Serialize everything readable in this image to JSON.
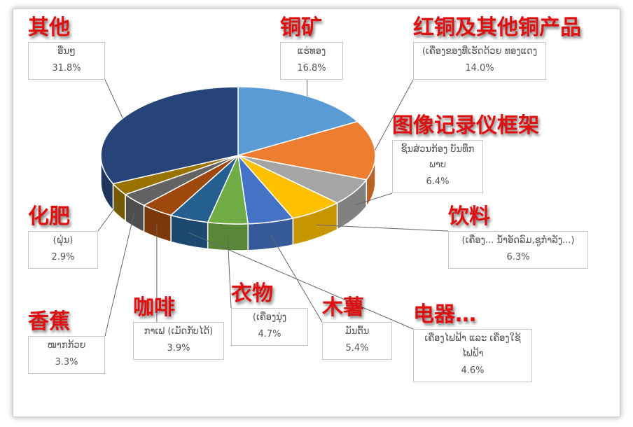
{
  "chart_data": {
    "type": "pie",
    "style": "3d",
    "start": "top, clockwise",
    "slices": [
      {
        "label_lao": "ແຮ່ທອງ",
        "label_zh": "铜矿",
        "value": 16.8,
        "pct": "16.8%",
        "color": "#5b9bd5"
      },
      {
        "label_lao": "(ເຄື່ອງຂອງທີ່ເຮັດດ້ວຍ ທອງແດງ",
        "label_zh": "红铜及其他铜产品",
        "value": 14.0,
        "pct": "14.0%",
        "color": "#ed7d31"
      },
      {
        "label_lao": "ຊິ້ນສ່ວນກ້ອງ ບັນທຶກພາບ",
        "label_zh": "图像记录仪框架",
        "value": 6.4,
        "pct": "6.4%",
        "color": "#a5a5a5"
      },
      {
        "label_lao": "(ເຄື່ອງ... ນ້ຳອັດລົມ,ຊູກຳລັງ...)",
        "label_zh": "饮料",
        "value": 6.3,
        "pct": "6.3%",
        "color": "#ffc000"
      },
      {
        "label_lao": "ມັນຕົ້ນ",
        "label_zh": "木薯",
        "value": 5.4,
        "pct": "5.4%",
        "color": "#4472c4"
      },
      {
        "label_lao": "(ເຄື່ອງນຸ່ງ",
        "label_zh": "衣物",
        "value": 4.7,
        "pct": "4.7%",
        "color": "#70ad47"
      },
      {
        "label_lao": "ເຄື່ອງໄຟຟ້າ ແລະ ເຄື່ອງໃຊ້ໄຟຟ້າ",
        "label_zh": "电器…",
        "value": 4.6,
        "pct": "4.6%",
        "color": "#255e91"
      },
      {
        "label_lao": "ກາເຟ (ເມັດກັບໄດ້)",
        "label_zh": "咖啡",
        "value": 3.9,
        "pct": "3.9%",
        "color": "#9e480e"
      },
      {
        "label_lao": "ໝາກກ້ວຍ",
        "label_zh": "香蕉",
        "value": 3.3,
        "pct": "3.3%",
        "color": "#636363"
      },
      {
        "label_lao": "(ຝຸ່ນ)",
        "label_zh": "化肥",
        "value": 2.9,
        "pct": "2.9%",
        "color": "#997300"
      },
      {
        "label_lao": "ອື່ນໆ",
        "label_zh": "其他",
        "value": 31.8,
        "pct": "31.8%",
        "color": "#264478"
      }
    ]
  }
}
